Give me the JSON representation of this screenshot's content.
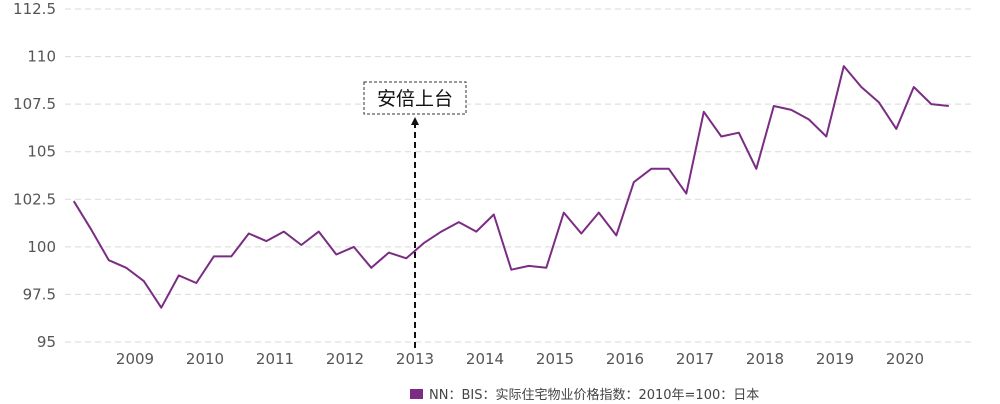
{
  "chart_data": {
    "type": "line",
    "title": "",
    "xlabel": "",
    "ylabel": "",
    "ylim": [
      95,
      112.5
    ],
    "yticks": [
      "95",
      "97.5",
      "100",
      "102.5",
      "105",
      "107.5",
      "110",
      "112.5"
    ],
    "ytick_values": [
      95,
      97.5,
      100,
      102.5,
      105,
      107.5,
      110,
      112.5
    ],
    "xlim": [
      2008.0,
      2021.0
    ],
    "xticks": [
      "2009",
      "2010",
      "2011",
      "2012",
      "2013",
      "2014",
      "2015",
      "2016",
      "2017",
      "2018",
      "2019",
      "2020"
    ],
    "xtick_values": [
      2009,
      2010,
      2011,
      2012,
      2013,
      2014,
      2015,
      2016,
      2017,
      2018,
      2019,
      2020
    ],
    "grid": "horizontal dashed",
    "legend_position": "bottom",
    "series": [
      {
        "name": "NN：BIS：实际住宅物业价格指数：2010年=100：日本",
        "color": "#7b2c83",
        "x": [
          2008.125,
          2008.375,
          2008.625,
          2008.875,
          2009.125,
          2009.375,
          2009.625,
          2009.875,
          2010.125,
          2010.375,
          2010.625,
          2010.875,
          2011.125,
          2011.375,
          2011.625,
          2011.875,
          2012.125,
          2012.375,
          2012.625,
          2012.875,
          2013.125,
          2013.375,
          2013.625,
          2013.875,
          2014.125,
          2014.375,
          2014.625,
          2014.875,
          2015.125,
          2015.375,
          2015.625,
          2015.875,
          2016.125,
          2016.375,
          2016.625,
          2016.875,
          2017.125,
          2017.375,
          2017.625,
          2017.875,
          2018.125,
          2018.375,
          2018.625,
          2018.875,
          2019.125,
          2019.375,
          2019.625,
          2019.875,
          2020.125,
          2020.375,
          2020.625
        ],
        "values": [
          102.4,
          100.9,
          99.3,
          98.9,
          98.2,
          96.8,
          98.5,
          98.1,
          99.5,
          99.5,
          100.7,
          100.3,
          100.8,
          100.1,
          100.8,
          99.6,
          100.0,
          98.9,
          99.7,
          99.4,
          100.2,
          100.8,
          101.3,
          100.8,
          101.7,
          98.8,
          99.0,
          98.9,
          101.8,
          100.7,
          101.8,
          100.6,
          103.4,
          104.1,
          104.1,
          102.8,
          107.1,
          105.8,
          106.0,
          104.1,
          107.4,
          107.2,
          106.7,
          105.8,
          109.5,
          108.4,
          107.6,
          106.2,
          108.4,
          107.5,
          107.4
        ]
      }
    ],
    "annotations": [
      {
        "text": "安倍上台",
        "x": 2013
      }
    ]
  }
}
